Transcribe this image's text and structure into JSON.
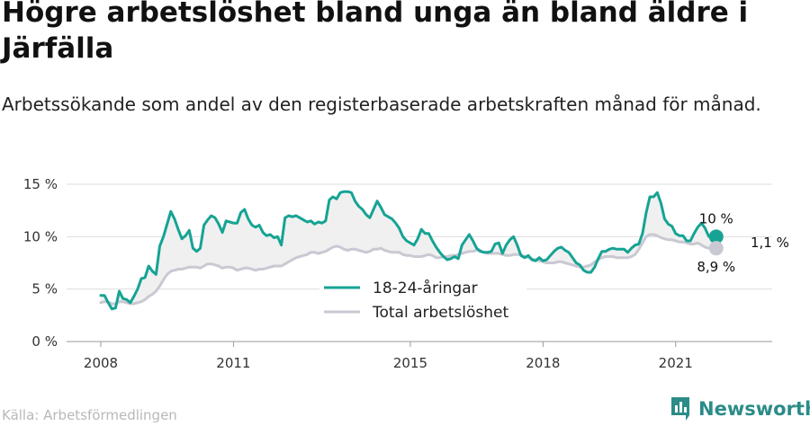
{
  "title": "Högre arbetslöshet bland unga än bland äldre i Järfälla",
  "subtitle": "Arbetssökande som andel av den registerbaserade arbetskraften månad för månad.",
  "source": "Källa: Arbetsförmedlingen",
  "brand": "Newsworthy",
  "colors": {
    "young": "#16a394",
    "total": "#c9c9d3",
    "gap_fill": "#f0f0f0",
    "grid": "#dddddd",
    "brand": "#2b8c88"
  },
  "chart_data": {
    "type": "line",
    "title": "Högre arbetslöshet bland unga än bland äldre i Järfälla",
    "xlabel": "",
    "ylabel": "",
    "xlim": [
      2008.0,
      2022.45
    ],
    "ylim": [
      0,
      15
    ],
    "yticks": [
      0,
      5,
      10,
      15
    ],
    "ytick_labels": [
      "0 %",
      "5 %",
      "10 %",
      "15 %"
    ],
    "xticks": [
      2008,
      2011,
      2015,
      2018,
      2021
    ],
    "xtick_labels": [
      "2008",
      "2011",
      "2015",
      "2018",
      "2021"
    ],
    "grid": true,
    "legend_position": "bottom-center",
    "x_start": 2008.0,
    "x_step_years": 0.08333,
    "series": [
      {
        "name": "18-24-åringar",
        "values": [
          4.4,
          4.4,
          3.7,
          3.1,
          3.2,
          4.8,
          4.1,
          4.0,
          3.7,
          4.3,
          5.0,
          6.0,
          6.1,
          7.2,
          6.7,
          6.4,
          9.1,
          10.0,
          11.2,
          12.4,
          11.7,
          10.7,
          9.8,
          10.1,
          10.6,
          8.9,
          8.6,
          8.9,
          11.1,
          11.6,
          12.0,
          11.8,
          11.2,
          10.4,
          11.5,
          11.4,
          11.3,
          11.3,
          12.3,
          12.6,
          11.7,
          11.1,
          10.9,
          11.1,
          10.4,
          10.1,
          10.2,
          9.9,
          10.0,
          9.2,
          11.8,
          12.0,
          11.9,
          12.0,
          11.8,
          11.6,
          11.4,
          11.5,
          11.2,
          11.4,
          11.3,
          11.5,
          13.5,
          13.8,
          13.6,
          14.2,
          14.3,
          14.3,
          14.2,
          13.4,
          12.9,
          12.6,
          12.1,
          11.8,
          12.6,
          13.4,
          12.8,
          12.1,
          11.9,
          11.7,
          11.3,
          10.8,
          10.0,
          9.6,
          9.4,
          9.2,
          9.8,
          10.7,
          10.3,
          10.3,
          9.6,
          9.0,
          8.5,
          8.1,
          7.8,
          7.9,
          8.1,
          7.9,
          9.2,
          9.7,
          10.2,
          9.6,
          8.9,
          8.6,
          8.5,
          8.5,
          8.6,
          9.3,
          9.4,
          8.4,
          9.2,
          9.7,
          10.0,
          9.2,
          8.2,
          8.0,
          8.2,
          7.8,
          7.7,
          8.0,
          7.7,
          7.8,
          8.2,
          8.6,
          8.9,
          9.0,
          8.7,
          8.5,
          8.0,
          7.5,
          7.3,
          6.8,
          6.6,
          6.6,
          7.1,
          7.9,
          8.6,
          8.6,
          8.8,
          8.9,
          8.8,
          8.8,
          8.8,
          8.5,
          8.9,
          9.2,
          9.3,
          10.3,
          12.3,
          13.8,
          13.8,
          14.2,
          13.2,
          11.7,
          11.2,
          11.0,
          10.3,
          10.1,
          10.1,
          9.6,
          9.6,
          10.3,
          10.9,
          11.3,
          10.8,
          10.0,
          10.0,
          10.0
        ]
      },
      {
        "name": "Total arbetslöshet",
        "values": [
          3.7,
          3.8,
          3.8,
          3.6,
          3.6,
          3.8,
          3.8,
          3.7,
          3.6,
          3.6,
          3.7,
          3.8,
          4.0,
          4.3,
          4.5,
          4.8,
          5.3,
          5.9,
          6.4,
          6.7,
          6.8,
          6.9,
          6.9,
          7.0,
          7.1,
          7.1,
          7.1,
          7.0,
          7.2,
          7.4,
          7.4,
          7.3,
          7.2,
          7.0,
          7.1,
          7.1,
          7.0,
          6.8,
          6.9,
          7.0,
          7.0,
          6.9,
          6.8,
          6.9,
          6.9,
          7.0,
          7.1,
          7.2,
          7.2,
          7.2,
          7.4,
          7.6,
          7.8,
          8.0,
          8.1,
          8.2,
          8.3,
          8.5,
          8.5,
          8.4,
          8.5,
          8.6,
          8.8,
          9.0,
          9.1,
          9.0,
          8.8,
          8.7,
          8.8,
          8.8,
          8.7,
          8.6,
          8.5,
          8.6,
          8.8,
          8.8,
          8.9,
          8.7,
          8.6,
          8.5,
          8.5,
          8.5,
          8.3,
          8.2,
          8.2,
          8.1,
          8.1,
          8.1,
          8.2,
          8.3,
          8.2,
          8.0,
          8.0,
          8.1,
          8.1,
          8.2,
          8.2,
          8.3,
          8.4,
          8.5,
          8.6,
          8.6,
          8.7,
          8.7,
          8.5,
          8.4,
          8.4,
          8.4,
          8.4,
          8.3,
          8.2,
          8.2,
          8.3,
          8.3,
          8.3,
          8.1,
          8.0,
          7.9,
          7.8,
          7.7,
          7.6,
          7.5,
          7.5,
          7.5,
          7.6,
          7.6,
          7.5,
          7.4,
          7.3,
          7.2,
          7.1,
          7.1,
          7.2,
          7.3,
          7.6,
          7.8,
          8.0,
          8.1,
          8.1,
          8.1,
          8.0,
          8.0,
          8.0,
          8.0,
          8.1,
          8.3,
          8.8,
          9.4,
          10.0,
          10.2,
          10.2,
          10.1,
          9.9,
          9.8,
          9.7,
          9.7,
          9.6,
          9.5,
          9.5,
          9.4,
          9.3,
          9.3,
          9.4,
          9.2,
          9.0,
          8.9,
          8.9,
          8.9
        ]
      }
    ],
    "annotations": [
      {
        "series": "18-24-åringar",
        "text": "10 %"
      },
      {
        "series": "Total arbetslöshet",
        "text": "8,9 %"
      },
      {
        "text": "1,1 %"
      }
    ]
  }
}
